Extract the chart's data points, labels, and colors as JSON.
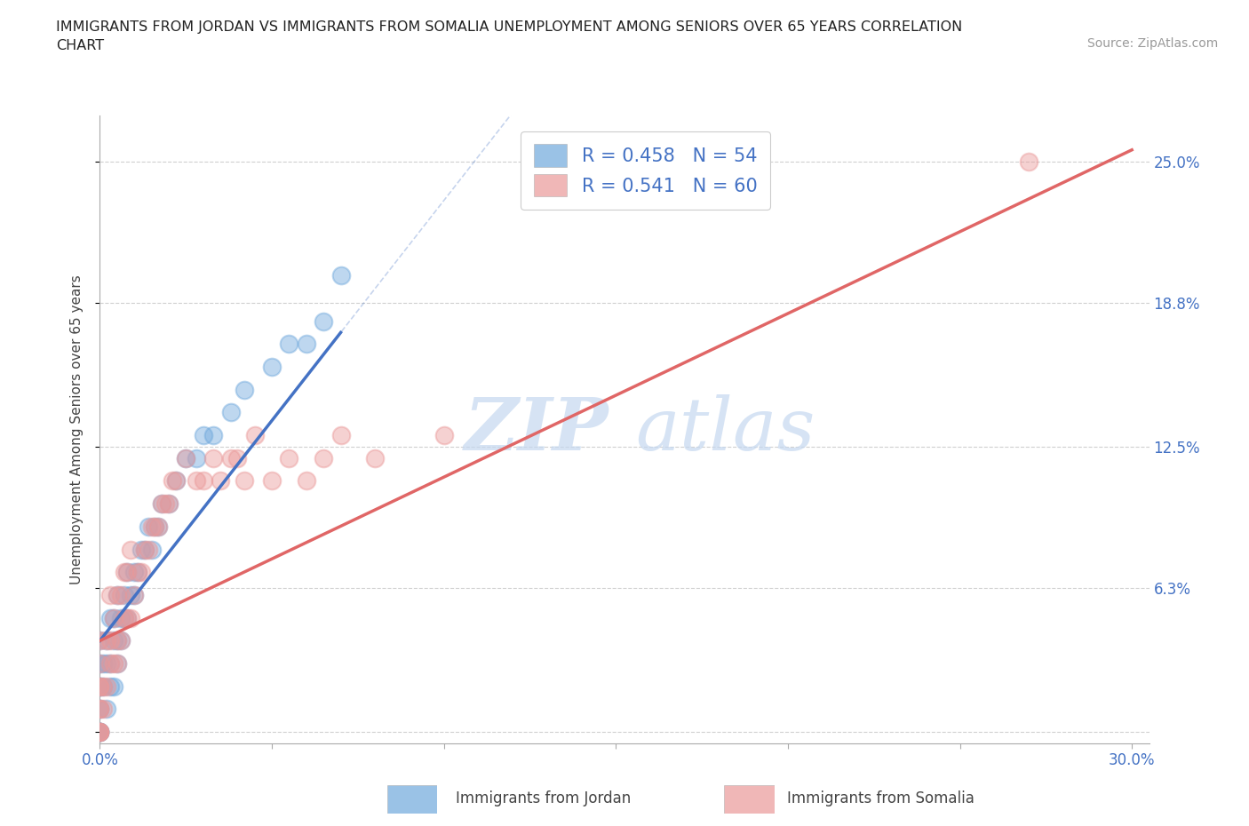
{
  "title": "IMMIGRANTS FROM JORDAN VS IMMIGRANTS FROM SOMALIA UNEMPLOYMENT AMONG SENIORS OVER 65 YEARS CORRELATION\nCHART",
  "source": "Source: ZipAtlas.com",
  "ylabel": "Unemployment Among Seniors over 65 years",
  "xlim": [
    0.0,
    0.3
  ],
  "ylim": [
    0.0,
    0.27
  ],
  "xtick_positions": [
    0.0,
    0.05,
    0.1,
    0.15,
    0.2,
    0.25,
    0.3
  ],
  "xticklabels": [
    "0.0%",
    "",
    "",
    "",
    "",
    "",
    "30.0%"
  ],
  "ytick_positions": [
    0.0,
    0.063,
    0.125,
    0.188,
    0.25
  ],
  "yticklabels_right": [
    "",
    "6.3%",
    "12.5%",
    "18.8%",
    "25.0%"
  ],
  "legend_r1": "R = 0.458",
  "legend_n1": "N = 54",
  "legend_r2": "R = 0.541",
  "legend_n2": "N = 60",
  "jordan_color": "#6fa8dc",
  "somalia_color": "#ea9999",
  "jordan_line_color": "#4472c4",
  "somalia_line_color": "#e06666",
  "watermark_zip": "ZIP",
  "watermark_atlas": "atlas",
  "jordan_scatter_x": [
    0.0,
    0.0,
    0.0,
    0.0,
    0.0,
    0.0,
    0.0,
    0.0,
    0.0,
    0.0,
    0.001,
    0.001,
    0.002,
    0.002,
    0.002,
    0.003,
    0.003,
    0.003,
    0.004,
    0.004,
    0.004,
    0.005,
    0.005,
    0.005,
    0.006,
    0.006,
    0.007,
    0.007,
    0.008,
    0.008,
    0.009,
    0.01,
    0.01,
    0.011,
    0.012,
    0.013,
    0.014,
    0.015,
    0.016,
    0.017,
    0.018,
    0.02,
    0.022,
    0.025,
    0.028,
    0.03,
    0.033,
    0.038,
    0.042,
    0.05,
    0.055,
    0.06,
    0.065,
    0.07
  ],
  "jordan_scatter_y": [
    0.0,
    0.0,
    0.0,
    0.0,
    0.01,
    0.01,
    0.02,
    0.02,
    0.03,
    0.04,
    0.02,
    0.03,
    0.01,
    0.03,
    0.04,
    0.02,
    0.03,
    0.05,
    0.02,
    0.04,
    0.05,
    0.03,
    0.04,
    0.06,
    0.04,
    0.05,
    0.05,
    0.06,
    0.05,
    0.07,
    0.06,
    0.06,
    0.07,
    0.07,
    0.08,
    0.08,
    0.09,
    0.08,
    0.09,
    0.09,
    0.1,
    0.1,
    0.11,
    0.12,
    0.12,
    0.13,
    0.13,
    0.14,
    0.15,
    0.16,
    0.17,
    0.17,
    0.18,
    0.2
  ],
  "jordan_line_x": [
    0.0,
    0.07
  ],
  "jordan_line_y": [
    0.04,
    0.175
  ],
  "somalia_line_x": [
    0.0,
    0.3
  ],
  "somalia_line_y": [
    0.04,
    0.255
  ],
  "somalia_scatter_x": [
    0.0,
    0.0,
    0.0,
    0.0,
    0.0,
    0.0,
    0.0,
    0.0,
    0.0,
    0.0,
    0.001,
    0.001,
    0.002,
    0.002,
    0.003,
    0.003,
    0.003,
    0.004,
    0.004,
    0.005,
    0.005,
    0.005,
    0.006,
    0.006,
    0.007,
    0.007,
    0.008,
    0.008,
    0.009,
    0.009,
    0.01,
    0.011,
    0.012,
    0.013,
    0.014,
    0.015,
    0.016,
    0.017,
    0.018,
    0.019,
    0.02,
    0.021,
    0.022,
    0.025,
    0.028,
    0.03,
    0.033,
    0.035,
    0.038,
    0.04,
    0.042,
    0.045,
    0.05,
    0.055,
    0.06,
    0.065,
    0.07,
    0.08,
    0.1,
    0.27
  ],
  "somalia_scatter_y": [
    0.0,
    0.0,
    0.0,
    0.0,
    0.01,
    0.01,
    0.02,
    0.02,
    0.03,
    0.04,
    0.01,
    0.02,
    0.02,
    0.04,
    0.03,
    0.04,
    0.06,
    0.03,
    0.05,
    0.03,
    0.04,
    0.06,
    0.04,
    0.06,
    0.05,
    0.07,
    0.05,
    0.07,
    0.05,
    0.08,
    0.06,
    0.07,
    0.07,
    0.08,
    0.08,
    0.09,
    0.09,
    0.09,
    0.1,
    0.1,
    0.1,
    0.11,
    0.11,
    0.12,
    0.11,
    0.11,
    0.12,
    0.11,
    0.12,
    0.12,
    0.11,
    0.13,
    0.11,
    0.12,
    0.11,
    0.12,
    0.13,
    0.12,
    0.13,
    0.25
  ]
}
